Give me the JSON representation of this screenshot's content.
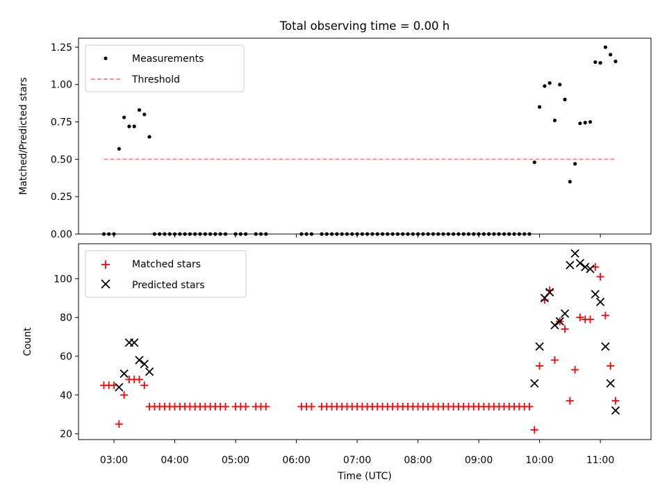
{
  "chart_data": [
    {
      "type": "scatter",
      "title": "Total observing time = 0.00 h",
      "xlabel": "",
      "ylabel": "Matched/Predicted stars",
      "ylim": [
        0,
        1.31
      ],
      "yticks": [
        0.0,
        0.25,
        0.5,
        0.75,
        1.0,
        1.25
      ],
      "ytick_labels": [
        "0.00",
        "0.25",
        "0.50",
        "0.75",
        "1.00",
        "1.25"
      ],
      "legend_position": "top-left",
      "colors": {
        "measurements": "#000000",
        "threshold": "#ff8080"
      },
      "series": [
        {
          "name": "Measurements",
          "x": [
            "02:50",
            "02:55",
            "03:00",
            "03:05",
            "03:10",
            "03:15",
            "03:20",
            "03:25",
            "03:30",
            "03:35",
            "03:40",
            "03:45",
            "03:50",
            "03:55",
            "04:00",
            "04:05",
            "04:10",
            "04:15",
            "04:20",
            "04:25",
            "04:30",
            "04:35",
            "04:40",
            "04:45",
            "04:50",
            "05:00",
            "05:05",
            "05:10",
            "05:20",
            "05:25",
            "05:30",
            "06:05",
            "06:10",
            "06:15",
            "06:25",
            "06:30",
            "06:35",
            "06:40",
            "06:45",
            "06:50",
            "06:55",
            "07:00",
            "07:05",
            "07:10",
            "07:15",
            "07:20",
            "07:25",
            "07:30",
            "07:35",
            "07:40",
            "07:45",
            "07:50",
            "07:55",
            "08:00",
            "08:05",
            "08:10",
            "08:15",
            "08:20",
            "08:25",
            "08:30",
            "08:35",
            "08:40",
            "08:45",
            "08:50",
            "08:55",
            "09:00",
            "09:05",
            "09:10",
            "09:15",
            "09:20",
            "09:25",
            "09:30",
            "09:35",
            "09:40",
            "09:45",
            "09:50",
            "09:55",
            "10:00",
            "10:05",
            "10:10",
            "10:15",
            "10:20",
            "10:25",
            "10:30",
            "10:35",
            "10:40",
            "10:45",
            "10:50",
            "10:55",
            "11:00",
            "11:05",
            "11:10",
            "11:15"
          ],
          "y": [
            0.0,
            0.0,
            0.0,
            0.57,
            0.78,
            0.72,
            0.72,
            0.83,
            0.8,
            0.65,
            0,
            0,
            0,
            0,
            0,
            0,
            0,
            0,
            0,
            0,
            0,
            0,
            0,
            0,
            0,
            0,
            0,
            0,
            0,
            0,
            0,
            0,
            0,
            0,
            0,
            0,
            0,
            0,
            0,
            0,
            0,
            0,
            0,
            0,
            0,
            0,
            0,
            0,
            0,
            0,
            0,
            0,
            0,
            0,
            0,
            0,
            0,
            0,
            0,
            0,
            0,
            0,
            0,
            0,
            0,
            0,
            0,
            0,
            0,
            0,
            0,
            0,
            0,
            0,
            0,
            0,
            0.48,
            0.85,
            0.99,
            1.01,
            0.76,
            1.0,
            0.9,
            0.35,
            0.47,
            0.74,
            0.745,
            0.75,
            1.15,
            1.145,
            1.25,
            1.2,
            1.155
          ]
        },
        {
          "name": "Threshold",
          "x": [
            "02:50",
            "11:15"
          ],
          "y": [
            0.5,
            0.5
          ]
        }
      ]
    },
    {
      "type": "scatter",
      "title": "",
      "xlabel": "Time (UTC)",
      "ylabel": "Count",
      "ylim": [
        17,
        118
      ],
      "yticks": [
        20,
        40,
        60,
        80,
        100
      ],
      "xlim": [
        "02:25",
        "11:50"
      ],
      "xtick_labels": [
        "03:00",
        "04:00",
        "05:00",
        "06:00",
        "07:00",
        "08:00",
        "09:00",
        "10:00",
        "11:00"
      ],
      "legend_position": "top-left",
      "colors": {
        "matched": "#ff0000",
        "predicted": "#000000"
      },
      "series": [
        {
          "name": "Matched stars",
          "x": [
            "02:50",
            "02:55",
            "03:00",
            "03:05",
            "03:10",
            "03:15",
            "03:20",
            "03:25",
            "03:30",
            "03:35",
            "03:40",
            "03:45",
            "03:50",
            "03:55",
            "04:00",
            "04:05",
            "04:10",
            "04:15",
            "04:20",
            "04:25",
            "04:30",
            "04:35",
            "04:40",
            "04:45",
            "04:50",
            "05:00",
            "05:05",
            "05:10",
            "05:20",
            "05:25",
            "05:30",
            "06:05",
            "06:10",
            "06:15",
            "06:25",
            "06:30",
            "06:35",
            "06:40",
            "06:45",
            "06:50",
            "06:55",
            "07:00",
            "07:05",
            "07:10",
            "07:15",
            "07:20",
            "07:25",
            "07:30",
            "07:35",
            "07:40",
            "07:45",
            "07:50",
            "07:55",
            "08:00",
            "08:05",
            "08:10",
            "08:15",
            "08:20",
            "08:25",
            "08:30",
            "08:35",
            "08:40",
            "08:45",
            "08:50",
            "08:55",
            "09:00",
            "09:05",
            "09:10",
            "09:15",
            "09:20",
            "09:25",
            "09:30",
            "09:35",
            "09:40",
            "09:45",
            "09:50",
            "09:55",
            "10:00",
            "10:05",
            "10:10",
            "10:15",
            "10:20",
            "10:25",
            "10:30",
            "10:35",
            "10:40",
            "10:45",
            "10:50",
            "10:55",
            "11:00",
            "11:05",
            "11:10",
            "11:15"
          ],
          "y": [
            45,
            45,
            45,
            25,
            40,
            48,
            48,
            48,
            45,
            34,
            34,
            34,
            34,
            34,
            34,
            34,
            34,
            34,
            34,
            34,
            34,
            34,
            34,
            34,
            34,
            34,
            34,
            34,
            34,
            34,
            34,
            34,
            34,
            34,
            34,
            34,
            34,
            34,
            34,
            34,
            34,
            34,
            34,
            34,
            34,
            34,
            34,
            34,
            34,
            34,
            34,
            34,
            34,
            34,
            34,
            34,
            34,
            34,
            34,
            34,
            34,
            34,
            34,
            34,
            34,
            34,
            34,
            34,
            34,
            34,
            34,
            34,
            34,
            34,
            34,
            34,
            22,
            55,
            89,
            94,
            58,
            78,
            74,
            37,
            53,
            80,
            79,
            79,
            106,
            101,
            81,
            55,
            37
          ]
        },
        {
          "name": "Predicted stars",
          "x": [
            "03:05",
            "03:10",
            "03:15",
            "03:20",
            "03:25",
            "03:30",
            "03:35",
            "09:55",
            "10:00",
            "10:05",
            "10:10",
            "10:15",
            "10:20",
            "10:25",
            "10:30",
            "10:35",
            "10:40",
            "10:45",
            "10:50",
            "10:55",
            "11:00",
            "11:05",
            "11:10",
            "11:15"
          ],
          "y": [
            44,
            51,
            67,
            67,
            58,
            56,
            52,
            46,
            65,
            90,
            93,
            76,
            78,
            82,
            107,
            113,
            108,
            106,
            105,
            92,
            88,
            65,
            46,
            32
          ]
        }
      ]
    }
  ]
}
